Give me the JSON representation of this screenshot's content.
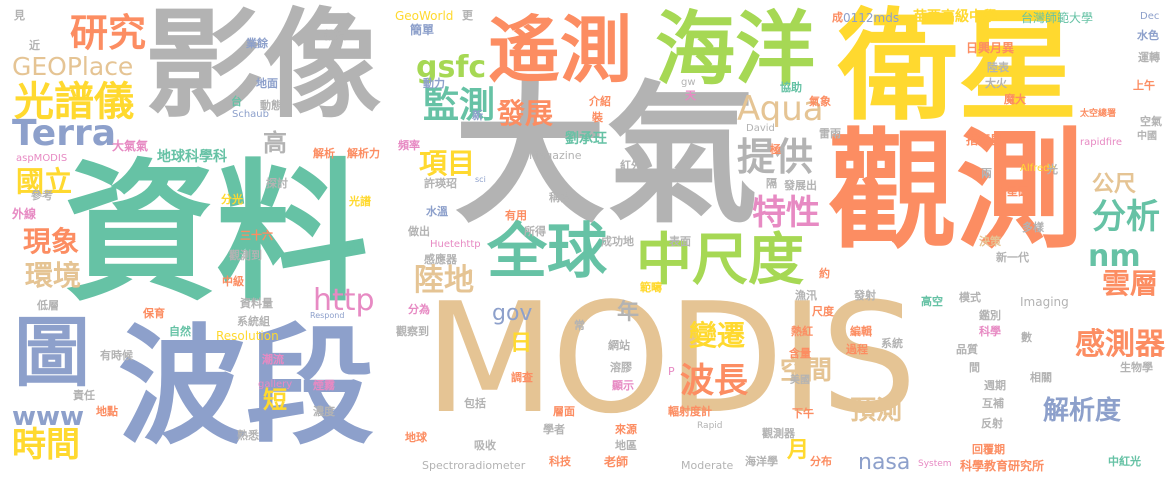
{
  "palette": {
    "orange": "#FC8D62",
    "gold": "#FFD92F",
    "gray": "#B3B3B3",
    "green": "#66C2A5",
    "blue": "#8DA0CB",
    "lime": "#A6D854",
    "tan": "#E5C494",
    "pink": "#E78AC3"
  },
  "words": [
    {
      "text": "MODIS",
      "color": "#E5C494"
    },
    {
      "text": "資料",
      "color": "#66C2A5"
    },
    {
      "text": "大氣",
      "color": "#B3B3B3"
    },
    {
      "text": "衛星",
      "color": "#FFD92F"
    },
    {
      "text": "影像",
      "color": "#B3B3B3"
    },
    {
      "text": "觀測",
      "color": "#FC8D62"
    },
    {
      "text": "波段",
      "color": "#8DA0CB"
    },
    {
      "text": "海洋",
      "color": "#A6D854"
    },
    {
      "text": "遙測",
      "color": "#FC8D62"
    },
    {
      "text": "圖",
      "color": "#8DA0CB"
    },
    {
      "text": "全球",
      "color": "#66C2A5"
    },
    {
      "text": "中尺度",
      "color": "#A6D854"
    },
    {
      "text": "研究",
      "color": "#FC8D62"
    },
    {
      "text": "光譜儀",
      "color": "#FFD92F"
    },
    {
      "text": "Terra",
      "color": "#8DA0CB"
    },
    {
      "text": "GEOPlace",
      "color": "#E5C494"
    },
    {
      "text": "監測",
      "color": "#66C2A5"
    },
    {
      "text": "gsfc",
      "color": "#A6D854"
    },
    {
      "text": "發展",
      "color": "#FC8D62"
    },
    {
      "text": "Aqua",
      "color": "#E5C494"
    },
    {
      "text": "提供",
      "color": "#B3B3B3"
    },
    {
      "text": "特性",
      "color": "#E78AC3"
    },
    {
      "text": "分析",
      "color": "#66C2A5"
    },
    {
      "text": "nm",
      "color": "#66C2A5"
    },
    {
      "text": "雲層",
      "color": "#FC8D62"
    },
    {
      "text": "公尺",
      "color": "#E5C494"
    },
    {
      "text": "國立",
      "color": "#FFD92F"
    },
    {
      "text": "現象",
      "color": "#FC8D62"
    },
    {
      "text": "環境",
      "color": "#E5C494"
    },
    {
      "text": "http",
      "color": "#E78AC3"
    },
    {
      "text": "陸地",
      "color": "#E5C494"
    },
    {
      "text": "項目",
      "color": "#FFD92F"
    },
    {
      "text": "高",
      "color": "#B3B3B3"
    },
    {
      "text": "gov",
      "color": "#8DA0CB"
    },
    {
      "text": "年",
      "color": "#B3B3B3"
    },
    {
      "text": "日",
      "color": "#FFD92F"
    },
    {
      "text": "變遷",
      "color": "#FFD92F"
    },
    {
      "text": "波長",
      "color": "#FC8D62"
    },
    {
      "text": "空間",
      "color": "#E5C494"
    },
    {
      "text": "預測",
      "color": "#E5C494"
    },
    {
      "text": "感測器",
      "color": "#FC8D62"
    },
    {
      "text": "解析度",
      "color": "#8DA0CB"
    },
    {
      "text": "www",
      "color": "#8DA0CB"
    },
    {
      "text": "短",
      "color": "#FFD92F"
    },
    {
      "text": "時間",
      "color": "#FFD92F"
    },
    {
      "text": "月",
      "color": "#FFD92F"
    },
    {
      "text": "nasa",
      "color": "#8DA0CB"
    },
    {
      "text": "劉承玨",
      "color": "#66C2A5"
    },
    {
      "text": "地球科學科",
      "color": "#66C2A5"
    },
    {
      "text": "大氣氣",
      "color": "#E78AC3"
    },
    {
      "text": "苗栗高級中學",
      "color": "#FFD92F"
    },
    {
      "text": "台灣師範大學",
      "color": "#66C2A5"
    },
    {
      "text": "GeoWorld",
      "color": "#FFD92F"
    },
    {
      "text": "0112mds",
      "color": "#8DA0CB"
    },
    {
      "text": "Magazine",
      "color": "#B3B3B3"
    },
    {
      "text": "Spectroradiometer",
      "color": "#B3B3B3"
    },
    {
      "text": "Moderate",
      "color": "#B3B3B3"
    },
    {
      "text": "Resolution",
      "color": "#FFD92F"
    },
    {
      "text": "Imaging",
      "color": "#B3B3B3"
    },
    {
      "text": "科學教育研究所",
      "color": "#FC8D62"
    },
    {
      "text": "Huetehttp",
      "color": "#E78AC3"
    },
    {
      "text": "aspMODIS",
      "color": "#E78AC3"
    },
    {
      "text": "rapidfire",
      "color": "#E78AC3"
    },
    {
      "text": "Alfredo",
      "color": "#FFD92F"
    },
    {
      "text": "Dec",
      "color": "#8DA0CB"
    },
    {
      "text": "Schaub",
      "color": "#8DA0CB"
    },
    {
      "text": "David",
      "color": "#B3B3B3"
    },
    {
      "text": "gallery",
      "color": "#E78AC3"
    },
    {
      "text": "Respond",
      "color": "#8DA0CB"
    },
    {
      "text": "System",
      "color": "#E78AC3"
    },
    {
      "text": "Rapid",
      "color": "#B3B3B3"
    },
    {
      "text": "gw",
      "color": "#B3B3B3"
    },
    {
      "text": "sci",
      "color": "#8DA0CB"
    },
    {
      "text": "見",
      "color": "#B3B3B3"
    },
    {
      "text": "近",
      "color": "#B3B3B3"
    },
    {
      "text": "參考",
      "color": "#B3B3B3"
    },
    {
      "text": "外線",
      "color": "#E78AC3"
    },
    {
      "text": "低層",
      "color": "#B3B3B3"
    },
    {
      "text": "責任",
      "color": "#B3B3B3"
    },
    {
      "text": "地點",
      "color": "#FC8D62"
    },
    {
      "text": "有時候",
      "color": "#B3B3B3"
    },
    {
      "text": "熟悉",
      "color": "#B3B3B3"
    },
    {
      "text": "業餘",
      "color": "#8DA0CB"
    },
    {
      "text": "地面",
      "color": "#8DA0CB"
    },
    {
      "text": "動態",
      "color": "#B3B3B3"
    },
    {
      "text": "台",
      "color": "#66C2A5"
    },
    {
      "text": "教授",
      "color": "#B3B3B3"
    },
    {
      "text": "更",
      "color": "#B3B3B3"
    },
    {
      "text": "簡單",
      "color": "#8DA0CB"
    },
    {
      "text": "動力",
      "color": "#8DA0CB"
    },
    {
      "text": "新",
      "color": "#8DA0CB"
    },
    {
      "text": "介紹",
      "color": "#FC8D62"
    },
    {
      "text": "裝",
      "color": "#FC8D62"
    },
    {
      "text": "天",
      "color": "#E78AC3"
    },
    {
      "text": "成",
      "color": "#FC8D62"
    },
    {
      "text": "日興月異",
      "color": "#FC8D62"
    },
    {
      "text": "陸表",
      "color": "#B3B3B3"
    },
    {
      "text": "大火",
      "color": "#B3B3B3"
    },
    {
      "text": "協助",
      "color": "#66C2A5"
    },
    {
      "text": "氣象",
      "color": "#FC8D62"
    },
    {
      "text": "魔大",
      "color": "#FC8D62"
    },
    {
      "text": "上午",
      "color": "#FC8D62"
    },
    {
      "text": "水色",
      "color": "#8DA0CB"
    },
    {
      "text": "運轉",
      "color": "#B3B3B3"
    },
    {
      "text": "太空總署",
      "color": "#FC8D62"
    },
    {
      "text": "空氣",
      "color": "#B3B3B3"
    },
    {
      "text": "中國",
      "color": "#B3B3B3"
    },
    {
      "text": "指衛星",
      "color": "#FC8D62"
    },
    {
      "text": "雷雨",
      "color": "#B3B3B3"
    },
    {
      "text": "極",
      "color": "#FC8D62"
    },
    {
      "text": "紅外",
      "color": "#B3B3B3"
    },
    {
      "text": "頻率",
      "color": "#E78AC3"
    },
    {
      "text": "解析",
      "color": "#FC8D62"
    },
    {
      "text": "解析力",
      "color": "#FC8D62"
    },
    {
      "text": "探討",
      "color": "#B3B3B3"
    },
    {
      "text": "光譜",
      "color": "#FFD92F"
    },
    {
      "text": "分光",
      "color": "#FFD92F"
    },
    {
      "text": "許瑛玿",
      "color": "#B3B3B3"
    },
    {
      "text": "稱為",
      "color": "#B3B3B3"
    },
    {
      "text": "隔",
      "color": "#B3B3B3"
    },
    {
      "text": "發展出",
      "color": "#B3B3B3"
    },
    {
      "text": "光",
      "color": "#B3B3B3"
    },
    {
      "text": "兩",
      "color": "#B3B3B3"
    },
    {
      "text": "衛星圖",
      "color": "#FC8D62"
    },
    {
      "text": "多樣",
      "color": "#B3B3B3"
    },
    {
      "text": "決策",
      "color": "#E5C494"
    },
    {
      "text": "新一代",
      "color": "#B3B3B3"
    },
    {
      "text": "約",
      "color": "#FC8D62"
    },
    {
      "text": "三十六",
      "color": "#FC8D62"
    },
    {
      "text": "觀測到",
      "color": "#B3B3B3"
    },
    {
      "text": "變化",
      "color": "#66C2A5"
    },
    {
      "text": "做出",
      "color": "#B3B3B3"
    },
    {
      "text": "水溫",
      "color": "#8DA0CB"
    },
    {
      "text": "有用",
      "color": "#FC8D62"
    },
    {
      "text": "所得",
      "color": "#B3B3B3"
    },
    {
      "text": "感應器",
      "color": "#B3B3B3"
    },
    {
      "text": "成功地",
      "color": "#B3B3B3"
    },
    {
      "text": "表面",
      "color": "#B3B3B3"
    },
    {
      "text": "範疇",
      "color": "#FFD92F"
    },
    {
      "text": "漁汛",
      "color": "#B3B3B3"
    },
    {
      "text": "發射",
      "color": "#B3B3B3"
    },
    {
      "text": "尺度",
      "color": "#FC8D62"
    },
    {
      "text": "高空",
      "color": "#66C2A5"
    },
    {
      "text": "模式",
      "color": "#B3B3B3"
    },
    {
      "text": "鑑別",
      "color": "#B3B3B3"
    },
    {
      "text": "科學",
      "color": "#E78AC3"
    },
    {
      "text": "中級",
      "color": "#FC8D62"
    },
    {
      "text": "資料量",
      "color": "#B3B3B3"
    },
    {
      "text": "系統組",
      "color": "#B3B3B3"
    },
    {
      "text": "保育",
      "color": "#FC8D62"
    },
    {
      "text": "自然",
      "color": "#66C2A5"
    },
    {
      "text": "分為",
      "color": "#E78AC3"
    },
    {
      "text": "觀察到",
      "color": "#B3B3B3"
    },
    {
      "text": "常",
      "color": "#B3B3B3"
    },
    {
      "text": "網站",
      "color": "#B3B3B3"
    },
    {
      "text": "熱紅",
      "color": "#FC8D62"
    },
    {
      "text": "編輯",
      "color": "#FC8D62"
    },
    {
      "text": "系統",
      "color": "#B3B3B3"
    },
    {
      "text": "過程",
      "color": "#FC8D62"
    },
    {
      "text": "含量",
      "color": "#FC8D62"
    },
    {
      "text": "品質",
      "color": "#B3B3B3"
    },
    {
      "text": "數",
      "color": "#B3B3B3"
    },
    {
      "text": "間",
      "color": "#B3B3B3"
    },
    {
      "text": "週期",
      "color": "#B3B3B3"
    },
    {
      "text": "相關",
      "color": "#B3B3B3"
    },
    {
      "text": "生物學",
      "color": "#B3B3B3"
    },
    {
      "text": "潮流",
      "color": "#E78AC3"
    },
    {
      "text": "煙霧",
      "color": "#E78AC3"
    },
    {
      "text": "濃度",
      "color": "#B3B3B3"
    },
    {
      "text": "溶膠",
      "color": "#B3B3B3"
    },
    {
      "text": "顯示",
      "color": "#E78AC3"
    },
    {
      "text": "調查",
      "color": "#FC8D62"
    },
    {
      "text": "P",
      "color": "#E78AC3"
    },
    {
      "text": "美國",
      "color": "#B3B3B3"
    },
    {
      "text": "互補",
      "color": "#B3B3B3"
    },
    {
      "text": "反射",
      "color": "#B3B3B3"
    },
    {
      "text": "包括",
      "color": "#B3B3B3"
    },
    {
      "text": "層面",
      "color": "#FC8D62"
    },
    {
      "text": "輻射度計",
      "color": "#FC8D62"
    },
    {
      "text": "下午",
      "color": "#FC8D62"
    },
    {
      "text": "地球",
      "color": "#FC8D62"
    },
    {
      "text": "吸收",
      "color": "#B3B3B3"
    },
    {
      "text": "學者",
      "color": "#B3B3B3"
    },
    {
      "text": "來源",
      "color": "#FC8D62"
    },
    {
      "text": "地區",
      "color": "#B3B3B3"
    },
    {
      "text": "觀測器",
      "color": "#B3B3B3"
    },
    {
      "text": "回覆期",
      "color": "#FC8D62"
    },
    {
      "text": "科技",
      "color": "#FC8D62"
    },
    {
      "text": "老師",
      "color": "#FC8D62"
    },
    {
      "text": "海洋學",
      "color": "#B3B3B3"
    },
    {
      "text": "分布",
      "color": "#FC8D62"
    },
    {
      "text": "中紅光",
      "color": "#66C2A5"
    }
  ]
}
